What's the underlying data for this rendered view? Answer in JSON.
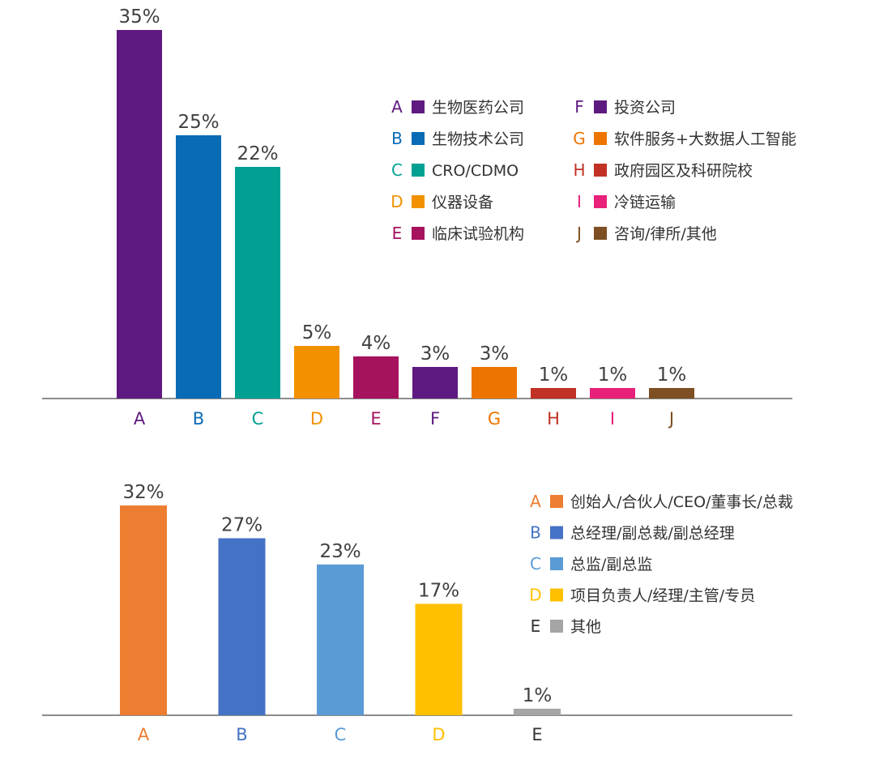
{
  "chart_data": [
    {
      "type": "bar",
      "categories": [
        "A",
        "B",
        "C",
        "D",
        "E",
        "F",
        "G",
        "H",
        "I",
        "J"
      ],
      "values": [
        35,
        25,
        22,
        5,
        4,
        3,
        3,
        1,
        1,
        1
      ],
      "value_labels": [
        "35%",
        "25%",
        "22%",
        "5%",
        "4%",
        "3%",
        "3%",
        "1%",
        "1%",
        "1%"
      ],
      "unit": "%",
      "colors": [
        "#5e1a80",
        "#0a6bb5",
        "#00a092",
        "#f29100",
        "#a6125e",
        "#5e1a80",
        "#ee7400",
        "#c13224",
        "#e8227a",
        "#7d4f22"
      ],
      "legend": [
        {
          "letter": "A",
          "label": "生物医药公司",
          "color": "#5e1a80"
        },
        {
          "letter": "B",
          "label": "生物技术公司",
          "color": "#0a6bb5"
        },
        {
          "letter": "C",
          "label": "CRO/CDMO",
          "color": "#00a092"
        },
        {
          "letter": "D",
          "label": "仪器设备",
          "color": "#f29100"
        },
        {
          "letter": "E",
          "label": "临床试验机构",
          "color": "#a6125e"
        },
        {
          "letter": "F",
          "label": "投资公司",
          "color": "#5e1a80"
        },
        {
          "letter": "G",
          "label": "软件服务+大数据人工智能",
          "color": "#ee7400"
        },
        {
          "letter": "H",
          "label": "政府园区及科研院校",
          "color": "#c13224"
        },
        {
          "letter": "I",
          "label": "冷链运输",
          "color": "#e8227a"
        },
        {
          "letter": "J",
          "label": "咨询/律所/其他",
          "color": "#7d4f22"
        }
      ],
      "legend_placement": "top-right",
      "ylim": [
        0,
        35
      ],
      "grid": false
    },
    {
      "type": "bar",
      "categories": [
        "A",
        "B",
        "C",
        "D",
        "E"
      ],
      "values": [
        32,
        27,
        23,
        17,
        1
      ],
      "value_labels": [
        "32%",
        "27%",
        "23%",
        "17%",
        "1%"
      ],
      "unit": "%",
      "colors": [
        "#ed7d31",
        "#4472c4",
        "#5b9bd5",
        "#ffc000",
        "#a5a5a5"
      ],
      "category_label_colors": [
        "#ed7d31",
        "#4472c4",
        "#5b9bd5",
        "#ffc000",
        "#333333"
      ],
      "legend": [
        {
          "letter": "A",
          "label": "创始人/合伙人/CEO/董事长/总裁",
          "color": "#ed7d31",
          "letter_color": "#ed7d31"
        },
        {
          "letter": "B",
          "label": "总经理/副总裁/副总经理",
          "color": "#4472c4",
          "letter_color": "#4472c4"
        },
        {
          "letter": "C",
          "label": "总监/副总监",
          "color": "#5b9bd5",
          "letter_color": "#5b9bd5"
        },
        {
          "letter": "D",
          "label": "项目负责人/经理/主管/专员",
          "color": "#ffc000",
          "letter_color": "#ffc000"
        },
        {
          "letter": "E",
          "label": "其他",
          "color": "#a5a5a5",
          "letter_color": "#333333"
        }
      ],
      "legend_placement": "top-right",
      "ylim": [
        0,
        32
      ],
      "grid": false
    }
  ]
}
